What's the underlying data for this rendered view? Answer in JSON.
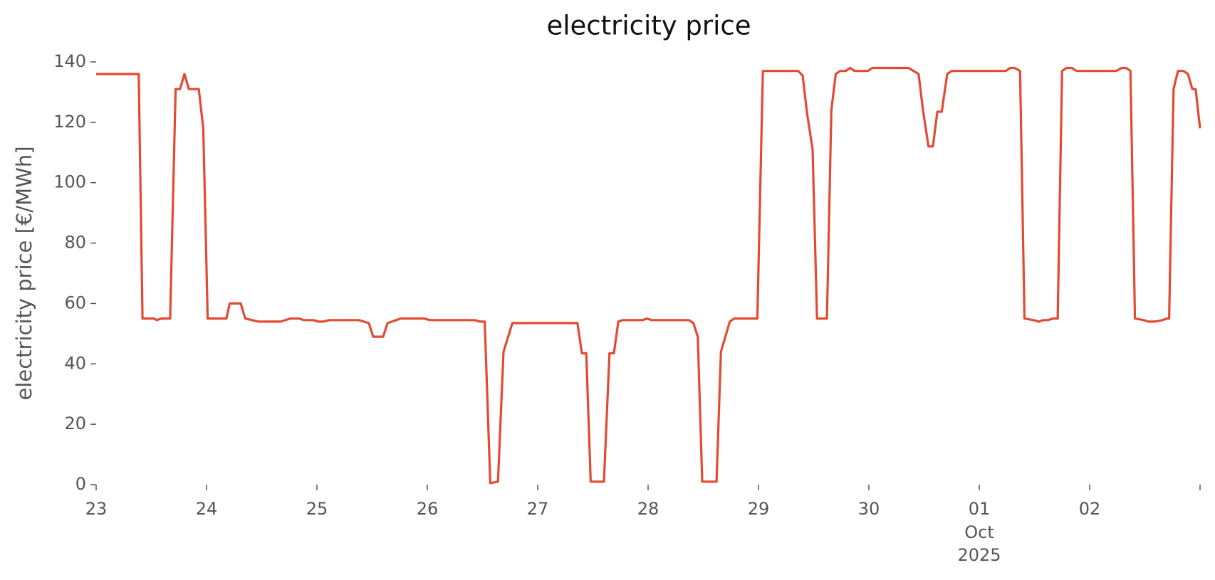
{
  "chart_data": {
    "type": "line",
    "title": "electricity price",
    "ylabel": "electricity price [€/MWh]",
    "color": "#e24a33",
    "x": [
      0,
      0.386,
      0.42,
      0.52,
      0.55,
      0.59,
      0.67,
      0.72,
      0.76,
      0.8,
      0.84,
      0.93,
      0.97,
      1.01,
      1.18,
      1.21,
      1.31,
      1.35,
      1.47,
      1.67,
      1.76,
      1.84,
      1.88,
      1.97,
      2.01,
      2.06,
      2.11,
      2.38,
      2.47,
      2.51,
      2.6,
      2.64,
      2.76,
      2.97,
      3.02,
      3.43,
      3.48,
      3.52,
      3.57,
      3.64,
      3.69,
      3.77,
      4.36,
      4.4,
      4.44,
      4.48,
      4.6,
      4.65,
      4.69,
      4.73,
      4.77,
      4.95,
      4.99,
      5.03,
      5.37,
      5.41,
      5.45,
      5.49,
      5.62,
      5.66,
      5.74,
      5.78,
      5.99,
      6.04,
      6.36,
      6.4,
      6.44,
      6.49,
      6.53,
      6.62,
      6.66,
      6.7,
      6.74,
      6.79,
      6.83,
      6.87,
      6.99,
      7.03,
      7.36,
      7.45,
      7.49,
      7.54,
      7.58,
      7.62,
      7.66,
      7.71,
      7.75,
      8.24,
      8.28,
      8.32,
      8.37,
      8.41,
      8.49,
      8.54,
      8.58,
      8.62,
      8.67,
      8.71,
      8.75,
      8.79,
      8.84,
      8.88,
      9.24,
      9.29,
      9.33,
      9.37,
      9.41,
      9.49,
      9.53,
      9.59,
      9.66,
      9.7,
      9.72,
      9.76,
      9.8,
      9.85,
      9.89,
      9.93,
      9.96,
      10
    ],
    "values": [
      136,
      136,
      55,
      55,
      54.5,
      55,
      55,
      131,
      131,
      136,
      131,
      131,
      118,
      55,
      55,
      60,
      60,
      55,
      54,
      54,
      55,
      55,
      54.5,
      54.5,
      54,
      54,
      54.5,
      54.5,
      53.5,
      49,
      49,
      53.5,
      55,
      55,
      54.5,
      54.5,
      54,
      54,
      0.5,
      1,
      44,
      53.5,
      53.5,
      43.5,
      43.5,
      1,
      1,
      43.5,
      43.5,
      54,
      54.5,
      54.5,
      55,
      54.5,
      54.5,
      53.5,
      49,
      1,
      1,
      44,
      54,
      55,
      55,
      137,
      137,
      135.5,
      123,
      111,
      55,
      55,
      124,
      136,
      137,
      137,
      138,
      137,
      137,
      138,
      138,
      136,
      124,
      112,
      112,
      123.5,
      123.5,
      136,
      137,
      137,
      138,
      138,
      137,
      55,
      54.5,
      54,
      54.5,
      54.5,
      55,
      55,
      137,
      138,
      138,
      137,
      137,
      138,
      138,
      137,
      55,
      54.5,
      54,
      54,
      54.5,
      55,
      55,
      131,
      137,
      137,
      136,
      131,
      131,
      118
    ],
    "xlim": [
      0,
      10
    ],
    "ylim": [
      0,
      140
    ],
    "xticks": [
      {
        "value": 0,
        "label": "23"
      },
      {
        "value": 1,
        "label": "24"
      },
      {
        "value": 2,
        "label": "25"
      },
      {
        "value": 3,
        "label": "26"
      },
      {
        "value": 4,
        "label": "27"
      },
      {
        "value": 5,
        "label": "28"
      },
      {
        "value": 6,
        "label": "29"
      },
      {
        "value": 7,
        "label": "30"
      },
      {
        "value": 8,
        "label": "01",
        "sublabels": [
          "Oct",
          "2025"
        ]
      },
      {
        "value": 9,
        "label": "02"
      }
    ],
    "yticks": [
      0,
      20,
      40,
      60,
      80,
      100,
      120,
      140
    ]
  }
}
